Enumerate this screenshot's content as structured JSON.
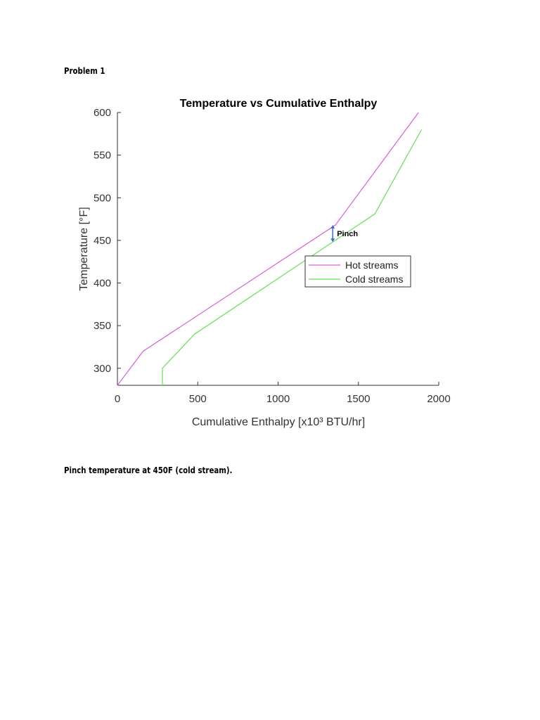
{
  "heading": "Problem 1",
  "conclusion": "Pinch temperature at 450F (cold stream).",
  "chart_data": {
    "type": "line",
    "title": "Temperature vs Cumulative Enthalpy",
    "xlabel": "Cumulative Enthalpy [x10³ BTU/hr]",
    "ylabel": "Temperature [°F]",
    "xlim": [
      0,
      2000
    ],
    "ylim": [
      280,
      600
    ],
    "xticks": [
      0,
      500,
      1000,
      1500,
      2000
    ],
    "yticks": [
      300,
      350,
      400,
      450,
      500,
      550,
      600
    ],
    "grid": false,
    "legend_position": "center-right",
    "series": [
      {
        "name": "Hot streams",
        "color": "#d660d6",
        "x": [
          0,
          160,
          1357,
          1874
        ],
        "y": [
          280,
          320,
          468,
          600
        ]
      },
      {
        "name": "Cold streams",
        "color": "#66dd55",
        "x": [
          280,
          280,
          480,
          1602,
          1893
        ],
        "y": [
          280,
          300,
          340,
          481,
          580
        ]
      }
    ],
    "annotation": {
      "text": "Pinch",
      "x": 1340,
      "y_top": 468,
      "y_bottom": 448,
      "color": "#3a6fc4"
    }
  }
}
